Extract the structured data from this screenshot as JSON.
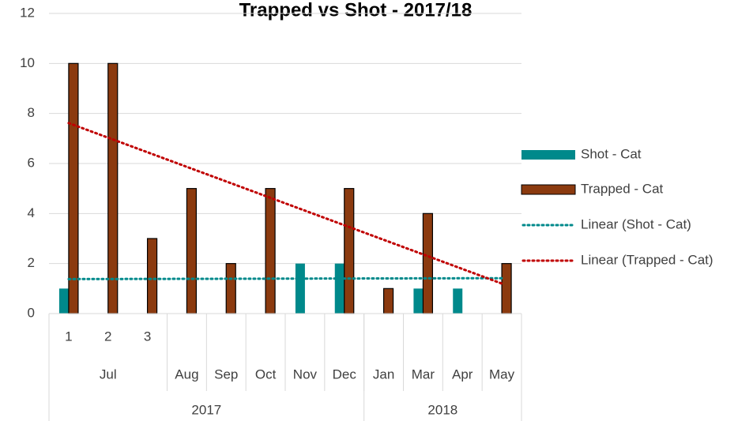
{
  "chart_data": {
    "type": "bar",
    "title": "Trapped vs Shot - 2017/18",
    "categories": [
      "1",
      "2",
      "3",
      null,
      null,
      null,
      null,
      null,
      null,
      null,
      null,
      null
    ],
    "month_groups": [
      {
        "label": "Jul",
        "span": 3
      },
      {
        "label": "Aug",
        "span": 1
      },
      {
        "label": "Sep",
        "span": 1
      },
      {
        "label": "Oct",
        "span": 1
      },
      {
        "label": "Nov",
        "span": 1
      },
      {
        "label": "Dec",
        "span": 1
      },
      {
        "label": "Jan",
        "span": 1
      },
      {
        "label": "Mar",
        "span": 1
      },
      {
        "label": "Apr",
        "span": 1
      },
      {
        "label": "May",
        "span": 1
      }
    ],
    "year_groups": [
      {
        "label": "2017",
        "span": 8
      },
      {
        "label": "2018",
        "span": 4
      }
    ],
    "series": [
      {
        "name": "Shot - Cat",
        "color": "#00898b",
        "values": [
          1,
          null,
          null,
          null,
          null,
          null,
          2,
          2,
          null,
          1,
          1,
          null
        ]
      },
      {
        "name": "Trapped - Cat",
        "color": "#8b3a0f",
        "values": [
          10,
          10,
          3,
          5,
          2,
          5,
          null,
          5,
          1,
          4,
          null,
          2
        ]
      }
    ],
    "trendlines": [
      {
        "name": "Linear (Shot - Cat)",
        "series": 0,
        "color": "#00898b"
      },
      {
        "name": "Linear (Trapped - Cat)",
        "series": 1,
        "color": "#c00000"
      }
    ],
    "ylim": [
      0,
      12
    ],
    "yticks": [
      0,
      2,
      4,
      6,
      8,
      10,
      12
    ],
    "grid": true,
    "legend": "right"
  }
}
